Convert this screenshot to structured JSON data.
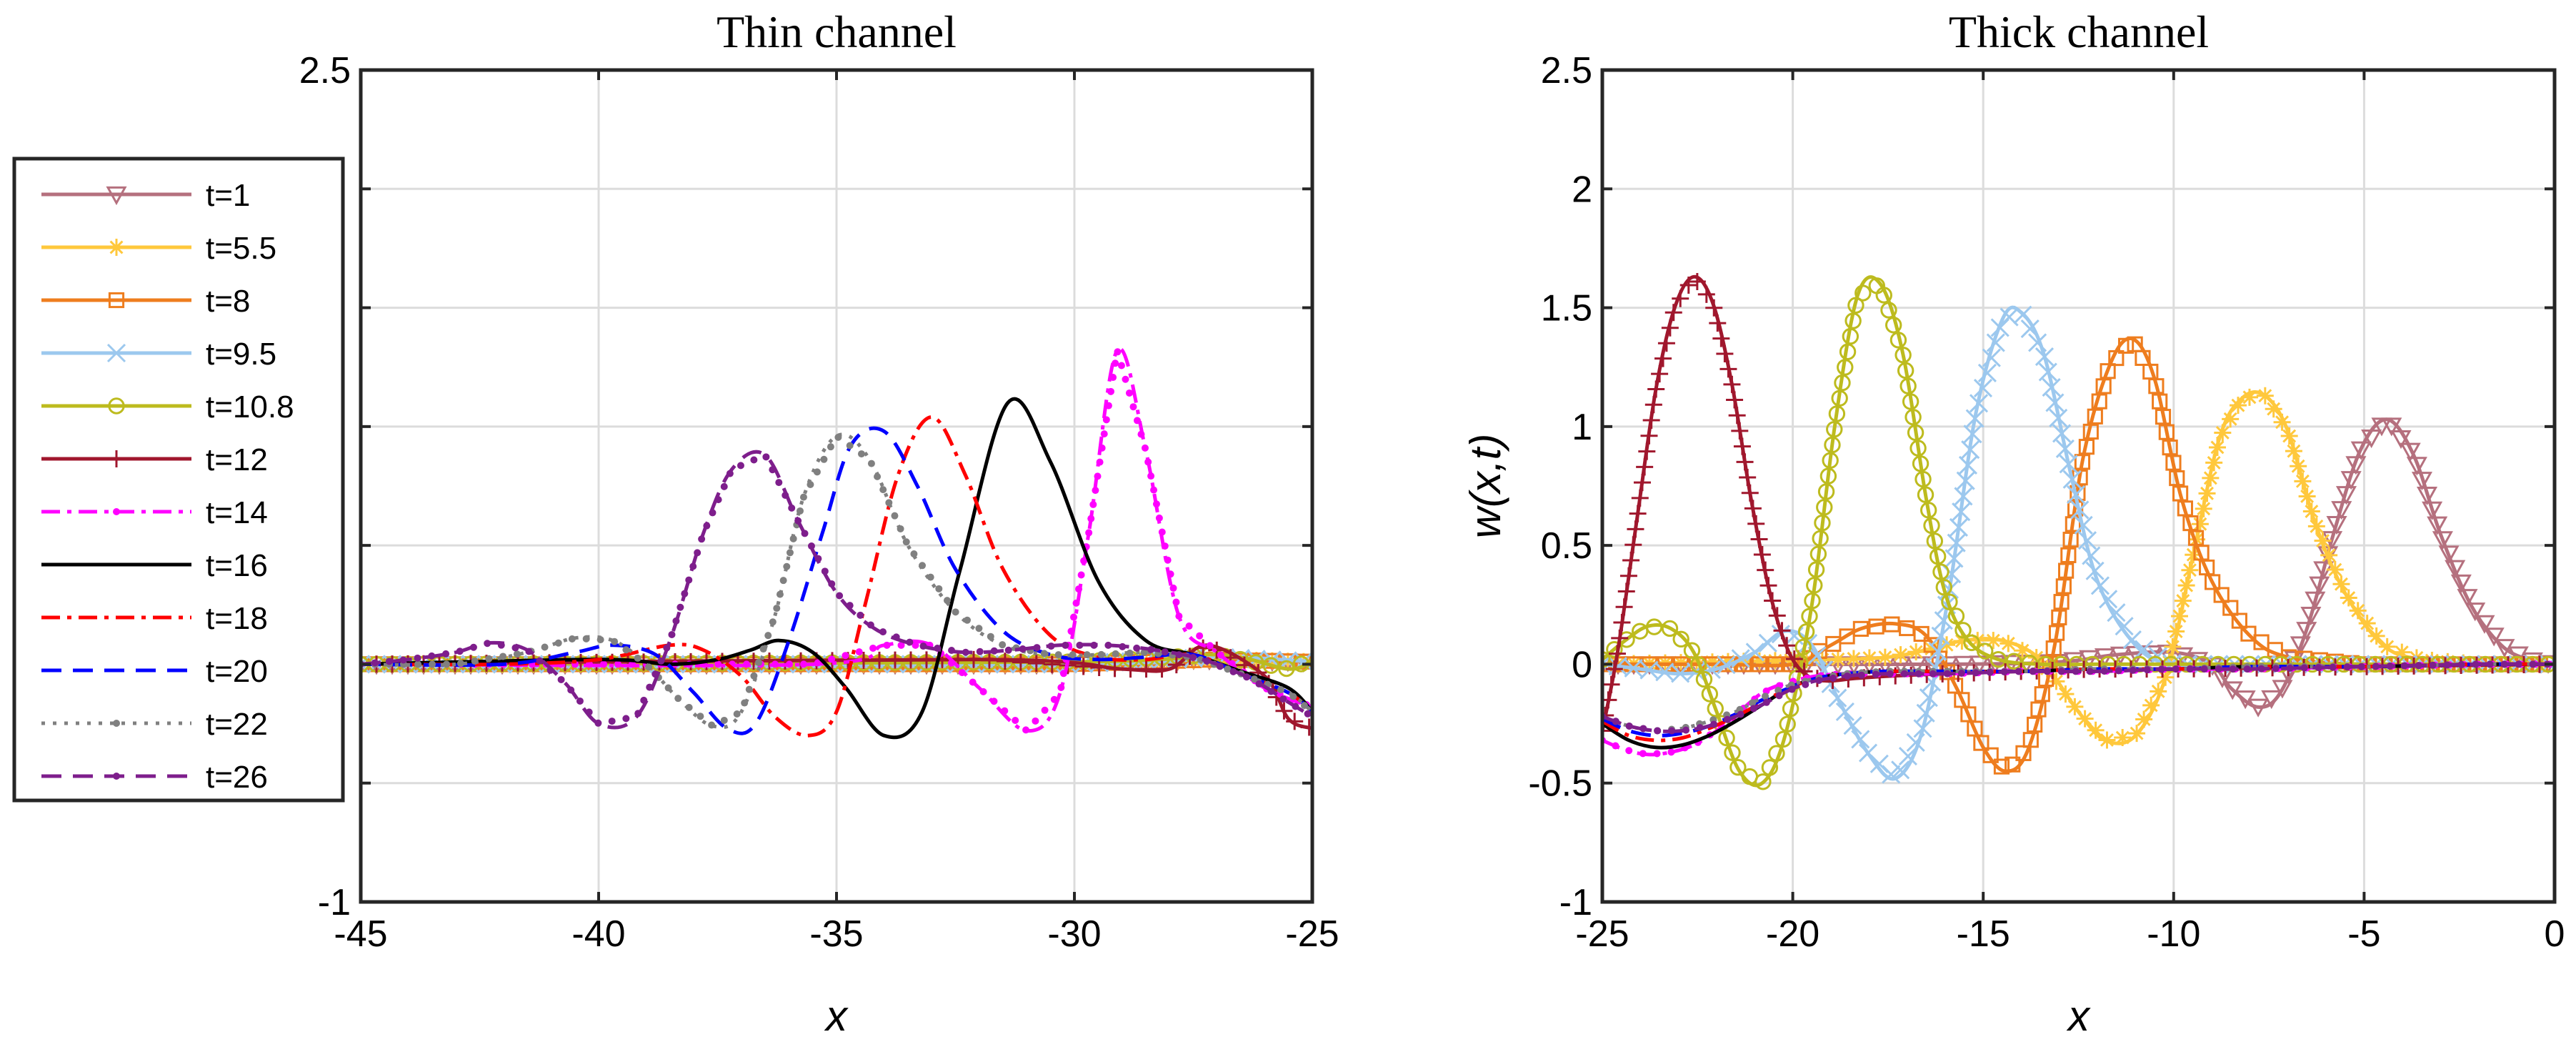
{
  "figure": {
    "legend": [
      {
        "label": "t=1",
        "color": "#B5707E",
        "dash": "solid",
        "marker": "tri-down"
      },
      {
        "label": "t=5.5",
        "color": "#FFC83C",
        "dash": "solid",
        "marker": "star"
      },
      {
        "label": "t=8",
        "color": "#EE7D1E",
        "dash": "solid",
        "marker": "square"
      },
      {
        "label": "t=9.5",
        "color": "#9CC8EE",
        "dash": "solid",
        "marker": "x"
      },
      {
        "label": "t=10.8",
        "color": "#BDBB1E",
        "dash": "solid",
        "marker": "circle"
      },
      {
        "label": "t=12",
        "color": "#A0172D",
        "dash": "solid",
        "marker": "plus"
      },
      {
        "label": "t=14",
        "color": "#FF00FF",
        "dash": "dashdot",
        "marker": "dot"
      },
      {
        "label": "t=16",
        "color": "#000000",
        "dash": "solid",
        "marker": "none"
      },
      {
        "label": "t=18",
        "color": "#FF0000",
        "dash": "dashdot",
        "marker": "none"
      },
      {
        "label": "t=20",
        "color": "#0000FF",
        "dash": "dashed",
        "marker": "none"
      },
      {
        "label": "t=22",
        "color": "#808080",
        "dash": "dotted",
        "marker": "dot"
      },
      {
        "label": "t=26",
        "color": "#7E1E8C",
        "dash": "dashed",
        "marker": "dot"
      }
    ]
  },
  "chart_data": [
    {
      "type": "line",
      "title": "Thin channel",
      "xlabel": "x",
      "ylabel": "",
      "xlim": [
        -45,
        -25
      ],
      "ylim": [
        -1,
        2.5
      ],
      "xticks": [
        -45,
        -40,
        -35,
        -30,
        -25
      ],
      "xtick_labels": [
        "-45",
        "-40",
        "-35",
        "-30",
        "-25"
      ],
      "yticks": [
        -1,
        -0.5,
        0,
        0.5,
        1,
        1.5,
        2,
        2.5
      ],
      "ytick_labels": [
        "-1",
        "",
        "",
        "",
        "",
        "",
        "",
        "2.5"
      ],
      "grid": true,
      "series": [
        {
          "name": "t=1",
          "x": [
            -45,
            -30,
            -27.5,
            -25
          ],
          "y": [
            0,
            0,
            0.02,
            0.01
          ]
        },
        {
          "name": "t=5.5",
          "x": [
            -45,
            -30,
            -27,
            -25
          ],
          "y": [
            0,
            0,
            0.02,
            0.01
          ]
        },
        {
          "name": "t=8",
          "x": [
            -45,
            -30,
            -27,
            -25
          ],
          "y": [
            0,
            0,
            0.02,
            0.01
          ]
        },
        {
          "name": "t=9.5",
          "x": [
            -45,
            -30,
            -27,
            -25
          ],
          "y": [
            0,
            0,
            0.03,
            0.01
          ]
        },
        {
          "name": "t=10.8",
          "x": [
            -45,
            -30,
            -27,
            -25.5,
            -25
          ],
          "y": [
            0,
            0.01,
            0.04,
            -0.02,
            0.02
          ]
        },
        {
          "name": "t=12",
          "x": [
            -45,
            -32,
            -29,
            -28,
            -27.2,
            -26,
            -25.5,
            -25
          ],
          "y": [
            0,
            0.02,
            -0.02,
            -0.02,
            0.08,
            -0.05,
            -0.23,
            -0.27
          ]
        },
        {
          "name": "t=14",
          "x": [
            -45,
            -35.5,
            -34,
            -33,
            -32,
            -31,
            -30.3,
            -29.7,
            -29.1,
            -28.5,
            -27.8,
            -27,
            -26,
            -25
          ],
          "y": [
            0,
            0.0,
            0.08,
            0.08,
            -0.1,
            -0.28,
            -0.12,
            0.55,
            1.32,
            0.9,
            0.2,
            0.05,
            -0.1,
            -0.18
          ]
        },
        {
          "name": "t=16",
          "x": [
            -45,
            -40,
            -38.5,
            -37.5,
            -36.8,
            -36.2,
            -35.5,
            -34.8,
            -34,
            -33.2,
            -32.4,
            -31.4,
            -30.5,
            -29.5,
            -28.5,
            -27.5,
            -26.5,
            -25.5,
            -25
          ],
          "y": [
            0,
            0.02,
            0.0,
            0.02,
            0.06,
            0.1,
            0.05,
            -0.1,
            -0.3,
            -0.2,
            0.4,
            1.1,
            0.85,
            0.35,
            0.1,
            0.04,
            -0.03,
            -0.1,
            -0.2
          ]
        },
        {
          "name": "t=18",
          "x": [
            -45,
            -42,
            -40,
            -38.5,
            -37.8,
            -37,
            -36.3,
            -35.6,
            -35,
            -34.4,
            -33.7,
            -33,
            -32.3,
            -31.5,
            -30.5,
            -29.5,
            -28.5,
            -27.5,
            -26.5,
            -25.5,
            -25
          ],
          "y": [
            0,
            0.0,
            0.02,
            0.08,
            0.06,
            -0.05,
            -0.22,
            -0.3,
            -0.2,
            0.25,
            0.8,
            1.04,
            0.8,
            0.4,
            0.12,
            0.03,
            0.02,
            0.04,
            -0.04,
            -0.12,
            -0.2
          ]
        },
        {
          "name": "t=20",
          "x": [
            -45,
            -42,
            -40.5,
            -39.7,
            -38.8,
            -38,
            -37.3,
            -36.7,
            -36,
            -35.3,
            -34.7,
            -34,
            -33.3,
            -32.5,
            -31.5,
            -30.5,
            -29.5,
            -28.5,
            -27.5,
            -26.5,
            -25.5,
            -25
          ],
          "y": [
            0,
            0.0,
            0.05,
            0.08,
            0.04,
            -0.12,
            -0.27,
            -0.25,
            0.1,
            0.55,
            0.92,
            0.98,
            0.75,
            0.4,
            0.14,
            0.04,
            0.02,
            0.03,
            0.04,
            -0.04,
            -0.12,
            -0.2
          ]
        },
        {
          "name": "t=22",
          "x": [
            -45,
            -43,
            -41.5,
            -40.5,
            -39.7,
            -39,
            -38.3,
            -37.6,
            -37,
            -36.3,
            -35.7,
            -35,
            -34.3,
            -33.5,
            -32.5,
            -31.5,
            -30.5,
            -29.5,
            -28.5,
            -27.5,
            -26.5,
            -25.5,
            -25
          ],
          "y": [
            0,
            0.0,
            0.05,
            0.11,
            0.1,
            0.0,
            -0.15,
            -0.26,
            -0.2,
            0.2,
            0.7,
            0.96,
            0.86,
            0.5,
            0.22,
            0.08,
            0.04,
            0.04,
            0.05,
            0.03,
            -0.04,
            -0.12,
            -0.2
          ]
        },
        {
          "name": "t=26",
          "x": [
            -45,
            -44,
            -43,
            -42.3,
            -41.5,
            -40.7,
            -40,
            -39.2,
            -38.5,
            -37.8,
            -37.2,
            -36.5,
            -35.8,
            -35,
            -34.2,
            -33.3,
            -32.3,
            -31.3,
            -30.3,
            -29.3,
            -28.3,
            -27.3,
            -26.3,
            -25.5,
            -25
          ],
          "y": [
            0,
            0.02,
            0.05,
            0.09,
            0.06,
            -0.08,
            -0.25,
            -0.22,
            0.1,
            0.55,
            0.82,
            0.88,
            0.6,
            0.3,
            0.15,
            0.08,
            0.05,
            0.06,
            0.08,
            0.08,
            0.06,
            0.02,
            -0.06,
            -0.16,
            -0.22
          ]
        }
      ]
    },
    {
      "type": "line",
      "title": "Thick channel",
      "xlabel": "x",
      "ylabel": "w(x,t)",
      "xlim": [
        -25,
        0
      ],
      "ylim": [
        -1,
        2.5
      ],
      "xticks": [
        -25,
        -20,
        -15,
        -10,
        -5,
        0
      ],
      "xtick_labels": [
        "-25",
        "-20",
        "-15",
        "-10",
        "-5",
        "0"
      ],
      "yticks": [
        -1,
        -0.5,
        0,
        0.5,
        1,
        1.5,
        2,
        2.5
      ],
      "ytick_labels": [
        "-1",
        "-0.5",
        "0",
        "0.5",
        "1",
        "1.5",
        "2",
        "2.5"
      ],
      "grid": true,
      "series": [
        {
          "name": "t=1",
          "x": [
            -25,
            -16,
            -13,
            -11.5,
            -10,
            -9,
            -8.5,
            -7.8,
            -7.2,
            -6.5,
            -5.8,
            -5.1,
            -4.4,
            -3.7,
            -3,
            -2.2,
            -1.4,
            -0.7,
            0
          ],
          "y": [
            0,
            0.0,
            0.01,
            0.04,
            0.05,
            0.0,
            -0.1,
            -0.18,
            -0.12,
            0.15,
            0.55,
            0.9,
            1.03,
            0.88,
            0.55,
            0.25,
            0.08,
            0.02,
            0.0
          ]
        },
        {
          "name": "t=5.5",
          "x": [
            -25,
            -19,
            -17.5,
            -16.5,
            -15.5,
            -14.5,
            -13.5,
            -12.5,
            -11.8,
            -11,
            -10.2,
            -9.5,
            -8.8,
            -8.2,
            -7.6,
            -7,
            -6.3,
            -5.5,
            -4.5,
            -3.5,
            -2,
            0
          ],
          "y": [
            0,
            0.02,
            0.03,
            0.06,
            0.1,
            0.1,
            0.02,
            -0.2,
            -0.32,
            -0.3,
            -0.05,
            0.45,
            0.95,
            1.12,
            1.13,
            0.98,
            0.6,
            0.3,
            0.08,
            0.02,
            0.0,
            0.0
          ]
        },
        {
          "name": "t=8",
          "x": [
            -25,
            -22,
            -20,
            -19,
            -18.2,
            -17.3,
            -16.5,
            -15.7,
            -15,
            -14.4,
            -13.8,
            -13.1,
            -12.4,
            -11.7,
            -11.1,
            -10.5,
            -9.8,
            -9,
            -8,
            -7,
            -5,
            0
          ],
          "y": [
            0,
            0.0,
            0.0,
            0.08,
            0.15,
            0.17,
            0.12,
            -0.1,
            -0.35,
            -0.45,
            -0.35,
            0.1,
            0.85,
            1.25,
            1.37,
            1.2,
            0.7,
            0.35,
            0.12,
            0.03,
            0.0,
            0.0
          ]
        },
        {
          "name": "t=9.5",
          "x": [
            -25,
            -24,
            -23,
            -22,
            -21,
            -20.2,
            -19.5,
            -18.8,
            -18,
            -17.3,
            -16.6,
            -15.9,
            -15.2,
            -14.5,
            -14,
            -13.4,
            -12.7,
            -12,
            -11,
            -10,
            -8,
            -5,
            0
          ],
          "y": [
            0,
            -0.02,
            -0.04,
            -0.02,
            0.05,
            0.14,
            0.08,
            -0.15,
            -0.38,
            -0.48,
            -0.28,
            0.3,
            1.05,
            1.45,
            1.48,
            1.3,
            0.8,
            0.35,
            0.08,
            0.0,
            0.0,
            0.0,
            0.0
          ]
        },
        {
          "name": "t=10.8",
          "x": [
            -25,
            -24.4,
            -23.8,
            -23.2,
            -22.6,
            -22,
            -21.4,
            -20.8,
            -20.2,
            -19.5,
            -18.9,
            -18.3,
            -17.7,
            -17.1,
            -16.5,
            -16,
            -15.4,
            -14.6,
            -13.5,
            -12,
            -10,
            -5,
            0
          ],
          "y": [
            0.02,
            0.1,
            0.16,
            0.15,
            0.05,
            -0.2,
            -0.45,
            -0.5,
            -0.3,
            0.25,
            1.0,
            1.55,
            1.6,
            1.3,
            0.7,
            0.3,
            0.1,
            0.02,
            0.0,
            0.0,
            0.0,
            0.0,
            0.0
          ]
        },
        {
          "name": "t=12",
          "x": [
            -25,
            -24.6,
            -24.1,
            -23.6,
            -23.1,
            -22.6,
            -22.1,
            -21.6,
            -21.1,
            -20.6,
            -20.1,
            -19.6,
            -19.1,
            -18.4,
            -17.5,
            -16,
            -14,
            -12,
            -10,
            -5,
            0
          ],
          "y": [
            -0.28,
            0.05,
            0.6,
            1.15,
            1.5,
            1.63,
            1.52,
            1.18,
            0.7,
            0.3,
            0.05,
            -0.05,
            -0.07,
            -0.06,
            -0.05,
            -0.04,
            -0.03,
            -0.02,
            -0.02,
            -0.01,
            0.0
          ]
        },
        {
          "name": "t=14",
          "x": [
            -25,
            -24.4,
            -23.8,
            -23.2,
            -22.6,
            -22,
            -21.4,
            -20.8,
            -20.2,
            -19.4,
            -18.6,
            -17.8,
            -16,
            -14,
            -12,
            -10,
            -8,
            -5,
            -2,
            0
          ],
          "y": [
            -0.32,
            -0.36,
            -0.38,
            -0.37,
            -0.34,
            -0.28,
            -0.2,
            -0.12,
            -0.08,
            -0.05,
            -0.04,
            -0.04,
            -0.04,
            -0.03,
            -0.03,
            -0.02,
            -0.02,
            -0.01,
            0.0,
            0.0
          ]
        },
        {
          "name": "t=16",
          "x": [
            -25,
            -24.3,
            -23.6,
            -22.9,
            -22.2,
            -21.5,
            -20.8,
            -20.1,
            -19.4,
            -18.6,
            -17.6,
            -16,
            -14,
            -12,
            -10,
            -8,
            -5,
            -2,
            0
          ],
          "y": [
            -0.25,
            -0.32,
            -0.35,
            -0.34,
            -0.3,
            -0.24,
            -0.17,
            -0.1,
            -0.06,
            -0.04,
            -0.03,
            -0.03,
            -0.03,
            -0.02,
            -0.02,
            -0.01,
            -0.01,
            0.0,
            0.0
          ]
        },
        {
          "name": "t=18",
          "x": [
            -25,
            -24.3,
            -23.6,
            -22.9,
            -22.2,
            -21.5,
            -20.8,
            -20.1,
            -19.4,
            -18.6,
            -17.6,
            -16,
            -14,
            -12,
            -10,
            -8,
            -5,
            -2,
            0
          ],
          "y": [
            -0.24,
            -0.3,
            -0.32,
            -0.31,
            -0.27,
            -0.22,
            -0.16,
            -0.1,
            -0.06,
            -0.04,
            -0.03,
            -0.03,
            -0.03,
            -0.02,
            -0.02,
            -0.01,
            -0.01,
            0.0,
            0.0
          ]
        },
        {
          "name": "t=20",
          "x": [
            -25,
            -24.3,
            -23.6,
            -22.9,
            -22.2,
            -21.5,
            -20.8,
            -20.1,
            -19.4,
            -18.6,
            -17.6,
            -16,
            -14,
            -12,
            -10,
            -8,
            -5,
            -2,
            0
          ],
          "y": [
            -0.23,
            -0.28,
            -0.3,
            -0.29,
            -0.26,
            -0.21,
            -0.15,
            -0.1,
            -0.06,
            -0.04,
            -0.03,
            -0.03,
            -0.03,
            -0.02,
            -0.02,
            -0.01,
            -0.01,
            0.0,
            0.0
          ]
        },
        {
          "name": "t=22",
          "x": [
            -25,
            -24.3,
            -23.6,
            -22.9,
            -22.2,
            -21.5,
            -20.8,
            -20.1,
            -19.4,
            -18.6,
            -17.6,
            -16,
            -14,
            -12,
            -10,
            -8,
            -5,
            -2,
            0
          ],
          "y": [
            -0.22,
            -0.26,
            -0.28,
            -0.27,
            -0.24,
            -0.2,
            -0.14,
            -0.09,
            -0.06,
            -0.04,
            -0.03,
            -0.03,
            -0.03,
            -0.02,
            -0.02,
            -0.01,
            -0.01,
            0.0,
            0.0
          ]
        },
        {
          "name": "t=26",
          "x": [
            -25,
            -24.3,
            -23.6,
            -22.9,
            -22.2,
            -21.5,
            -20.8,
            -20.1,
            -19.4,
            -18.6,
            -17.6,
            -16,
            -14,
            -12,
            -10,
            -8,
            -5,
            -2,
            0
          ],
          "y": [
            -0.22,
            -0.26,
            -0.28,
            -0.28,
            -0.26,
            -0.22,
            -0.17,
            -0.11,
            -0.07,
            -0.05,
            -0.04,
            -0.04,
            -0.03,
            -0.03,
            -0.02,
            -0.02,
            -0.01,
            0.0,
            0.0
          ]
        }
      ]
    }
  ]
}
